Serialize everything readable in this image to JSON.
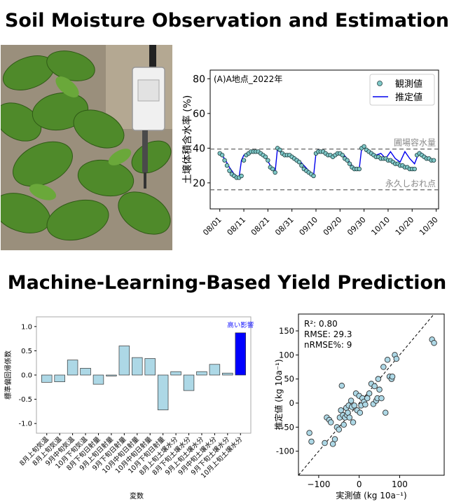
{
  "headings": {
    "top": "Soil Moisture Observation and Estimation",
    "bottom": "Machine-Learning-Based Yield Prediction"
  },
  "photo": {
    "icon": "soil-moisture-sensor-in-soybean-field"
  },
  "chart_data": [
    {
      "type": "line",
      "panel_label": "(A)A地点_2022年",
      "ylabel": "土壌体積含水率 (%)",
      "xlabel": "",
      "ylim": [
        5,
        85
      ],
      "yticks": [
        20,
        40,
        60,
        80
      ],
      "xticks": [
        "08/01",
        "08/11",
        "08/21",
        "08/31",
        "09/10",
        "09/20",
        "09/30",
        "10/10",
        "10/20",
        "10/30"
      ],
      "legend": {
        "placement": "top-right",
        "observed": "観測値",
        "estimated": "推定値"
      },
      "reference_lines": [
        {
          "label": "圃場容水量",
          "y": 39.5
        },
        {
          "label": "永久しおれ点",
          "y": 16
        }
      ],
      "series": [
        {
          "name": "観測値",
          "day": [
            1,
            2,
            3,
            4,
            5,
            6,
            7,
            8,
            9,
            10,
            11,
            12,
            13,
            14,
            15,
            16,
            17,
            18,
            19,
            20,
            21,
            22,
            23,
            24,
            25,
            26,
            27,
            28,
            29,
            30,
            31,
            32,
            33,
            34,
            35,
            36,
            37,
            38,
            39,
            40,
            41,
            42,
            43,
            44,
            45,
            46,
            47,
            48,
            49,
            50,
            51,
            52,
            53,
            54,
            55,
            56,
            57,
            58,
            59,
            60,
            61,
            62,
            63,
            64,
            65,
            66,
            67,
            68,
            69,
            70,
            71,
            72,
            73,
            74,
            75,
            76,
            77,
            78,
            79,
            80,
            81,
            82,
            83,
            84,
            85,
            86,
            87,
            88,
            89,
            90
          ],
          "values": [
            37,
            36,
            33,
            30,
            27,
            25,
            24,
            23,
            23,
            24,
            33,
            36,
            37,
            38,
            38,
            38,
            38,
            37,
            36,
            35,
            33,
            29,
            28,
            26,
            40,
            39,
            37,
            36,
            36,
            36,
            35,
            34,
            33,
            32,
            30,
            28,
            27,
            26,
            25,
            24,
            37,
            38,
            38,
            38,
            37,
            36,
            36,
            35,
            36,
            37,
            37,
            36,
            34,
            33,
            31,
            29,
            28,
            28,
            28,
            40,
            41,
            39,
            38,
            37,
            36,
            35,
            35,
            34,
            34,
            34,
            33,
            33,
            32,
            31,
            31,
            30,
            30,
            29,
            29,
            28,
            28,
            28,
            36,
            37,
            36,
            35,
            34,
            34,
            33,
            33
          ]
        },
        {
          "name": "推定値",
          "day": [
            1,
            3,
            5,
            7,
            8,
            9,
            10,
            11,
            12,
            14,
            16,
            18,
            20,
            22,
            24,
            25,
            26,
            28,
            30,
            32,
            34,
            36,
            38,
            39,
            40,
            41,
            42,
            44,
            46,
            48,
            50,
            52,
            54,
            56,
            58,
            59,
            60,
            61,
            62,
            64,
            65,
            66,
            68,
            70,
            72,
            74,
            76,
            78,
            79,
            80,
            82,
            84,
            86,
            88,
            90
          ],
          "values": [
            37,
            34,
            29,
            25,
            24,
            23,
            33,
            36,
            37,
            38,
            38,
            37,
            35,
            30,
            26,
            40,
            38,
            36,
            36,
            35,
            33,
            30,
            27,
            24,
            24,
            37,
            39,
            38,
            36,
            36,
            37,
            37,
            34,
            30,
            28,
            28,
            40,
            41,
            39,
            38,
            37,
            36,
            37,
            34,
            38,
            34,
            32,
            38,
            36,
            34,
            31,
            38,
            36,
            34,
            33
          ]
        }
      ]
    },
    {
      "type": "bar",
      "title": "高い影響",
      "ylabel": "標準偏回帰係数",
      "xlabel": "変数",
      "ylim": [
        -1.2,
        1.2
      ],
      "yticks": [
        -1.0,
        -0.5,
        0.0,
        0.5,
        1.0
      ],
      "categories": [
        "8月上旬気温",
        "8月上旬気温",
        "9月中旬気温",
        "10月下旬気温",
        "8月下旬日射量",
        "9月上旬日射量",
        "9月下旬日射量",
        "10月中旬日射量",
        "10月中旬日射量",
        "10月下旬日射量",
        "8月上旬土壌水分",
        "8月下旬土壌水分",
        "9月上旬土壌水分",
        "9月中旬土壌水分",
        "9月下旬土壌水分",
        "10月上旬土壌水分"
      ],
      "values": [
        -0.15,
        -0.14,
        0.31,
        0.14,
        -0.19,
        -0.02,
        0.6,
        0.36,
        0.34,
        -0.72,
        0.07,
        -0.32,
        0.07,
        0.22,
        0.04,
        0.87
      ],
      "highlight_index": 15,
      "colors": {
        "bar": "#add8e6",
        "highlight": "#0000ff",
        "highlight_text": "#1a1aff"
      }
    },
    {
      "type": "scatter",
      "xlabel": "実測値 (kg 10a⁻¹)",
      "ylabel": "推定値 (kg 10a⁻¹)",
      "xlim": [
        -150,
        210
      ],
      "ylim": [
        -150,
        185
      ],
      "xticks": [
        -100,
        0,
        100
      ],
      "yticks": [
        -100,
        -50,
        0,
        50,
        100,
        150
      ],
      "stats": [
        "R²: 0.80",
        "RMSE: 29.3",
        "nRMSE%: 9"
      ],
      "diagonal": "1:1 dashed",
      "points": [
        [
          -123,
          -62
        ],
        [
          -118,
          -80
        ],
        [
          -85,
          -83
        ],
        [
          -80,
          -30
        ],
        [
          -74,
          -35
        ],
        [
          -70,
          -40
        ],
        [
          -65,
          -85
        ],
        [
          -60,
          -75
        ],
        [
          -55,
          -50
        ],
        [
          -50,
          -55
        ],
        [
          -48,
          -30
        ],
        [
          -45,
          -15
        ],
        [
          -43,
          36
        ],
        [
          -40,
          -25
        ],
        [
          -38,
          -45
        ],
        [
          -35,
          -30
        ],
        [
          -32,
          -10
        ],
        [
          -30,
          -25
        ],
        [
          -28,
          -20
        ],
        [
          -26,
          -5
        ],
        [
          -24,
          -30
        ],
        [
          -20,
          5
        ],
        [
          -18,
          -8
        ],
        [
          -15,
          -40
        ],
        [
          -12,
          -5
        ],
        [
          -8,
          20
        ],
        [
          -5,
          -15
        ],
        [
          0,
          15
        ],
        [
          2,
          -20
        ],
        [
          5,
          -5
        ],
        [
          8,
          10
        ],
        [
          12,
          3
        ],
        [
          15,
          -3
        ],
        [
          20,
          10
        ],
        [
          25,
          20
        ],
        [
          30,
          40
        ],
        [
          35,
          -2
        ],
        [
          38,
          35
        ],
        [
          42,
          5
        ],
        [
          45,
          10
        ],
        [
          47,
          50
        ],
        [
          50,
          28
        ],
        [
          55,
          10
        ],
        [
          60,
          75
        ],
        [
          65,
          -20
        ],
        [
          70,
          90
        ],
        [
          75,
          55
        ],
        [
          80,
          50
        ],
        [
          82,
          55
        ],
        [
          88,
          100
        ],
        [
          92,
          92
        ],
        [
          180,
          132
        ],
        [
          185,
          125
        ]
      ],
      "colors": {
        "point": "#add8e6",
        "edge": "#333333"
      }
    }
  ]
}
